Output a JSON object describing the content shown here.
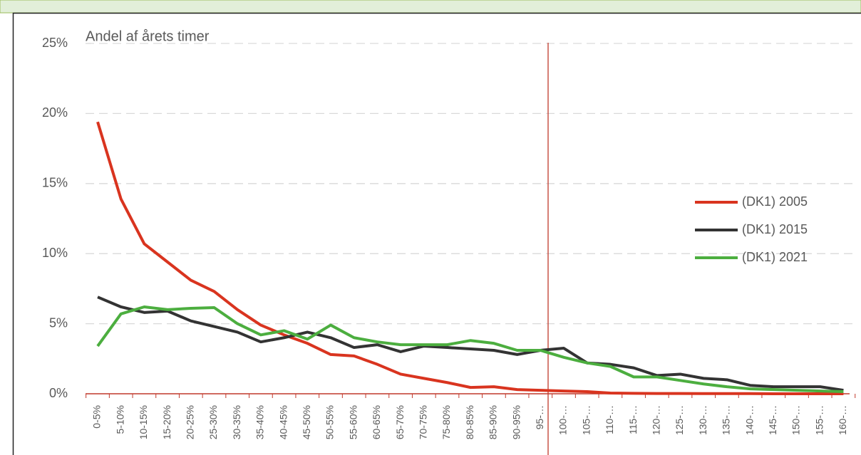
{
  "chart_data": {
    "type": "line",
    "title": "Andel af årets timer",
    "categories": [
      "0-5%",
      "5-10%",
      "10-15%",
      "15-20%",
      "20-25%",
      "25-30%",
      "30-35%",
      "35-40%",
      "40-45%",
      "45-50%",
      "50-55%",
      "55-60%",
      "60-65%",
      "65-70%",
      "70-75%",
      "75-80%",
      "80-85%",
      "85-90%",
      "90-95%",
      "95-…",
      "100-…",
      "105-…",
      "110-…",
      "115-…",
      "120-…",
      "125-…",
      "130-…",
      "135-…",
      "140-…",
      "145-…",
      "150-…",
      "155-…",
      "160-…"
    ],
    "series": [
      {
        "name": "(DK1) 2005",
        "color": "#d9341f",
        "values": [
          19.4,
          13.9,
          10.7,
          9.4,
          8.1,
          7.3,
          6.0,
          4.9,
          4.2,
          3.6,
          2.8,
          2.7,
          2.1,
          1.4,
          1.1,
          0.8,
          0.45,
          0.5,
          0.3,
          0.25,
          0.2,
          0.15,
          0.05,
          0.03,
          0.02,
          0.02,
          0.01,
          0.01,
          0.01,
          0,
          0,
          0,
          0
        ]
      },
      {
        "name": "(DK1) 2015",
        "color": "#333333",
        "values": [
          6.9,
          6.2,
          5.8,
          5.9,
          5.2,
          4.8,
          4.4,
          3.7,
          4.0,
          4.4,
          4.0,
          3.3,
          3.5,
          3.0,
          3.4,
          3.3,
          3.2,
          3.1,
          2.8,
          3.1,
          3.25,
          2.2,
          2.1,
          1.85,
          1.3,
          1.4,
          1.1,
          1.0,
          0.6,
          0.5,
          0.5,
          0.5,
          0.25
        ]
      },
      {
        "name": "(DK1) 2021",
        "color": "#4cae3f",
        "values": [
          3.4,
          5.7,
          6.2,
          6.0,
          6.1,
          6.15,
          5.0,
          4.2,
          4.5,
          3.9,
          4.9,
          4.0,
          3.7,
          3.5,
          3.5,
          3.5,
          3.8,
          3.6,
          3.1,
          3.1,
          2.6,
          2.2,
          1.95,
          1.2,
          1.2,
          0.95,
          0.7,
          0.5,
          0.35,
          0.3,
          0.25,
          0.2,
          0.15
        ]
      }
    ],
    "ylim": [
      0,
      25
    ],
    "yticks": [
      {
        "value": 0,
        "label": "0%"
      },
      {
        "value": 5,
        "label": "5%"
      },
      {
        "value": 10,
        "label": "10%"
      },
      {
        "value": 15,
        "label": "15%"
      },
      {
        "value": 20,
        "label": "20%"
      },
      {
        "value": 25,
        "label": "25%"
      }
    ],
    "grid": true,
    "legend": "right"
  }
}
